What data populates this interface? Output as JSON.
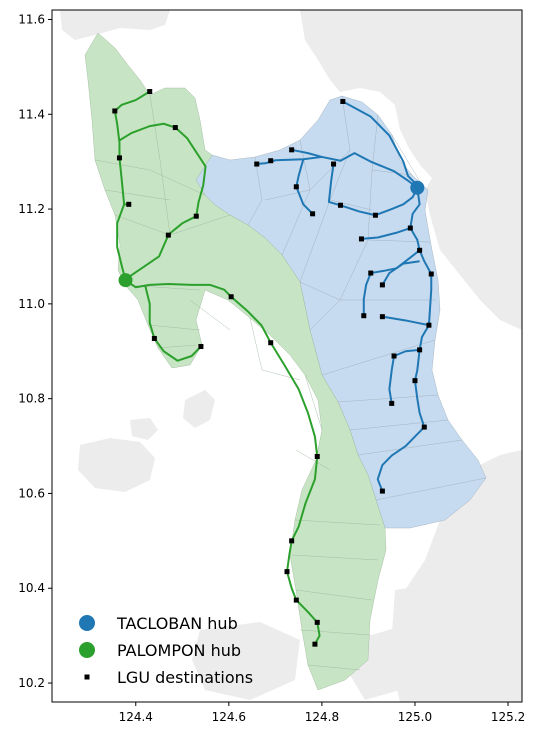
{
  "colors": {
    "tacloban": "#1f77b4",
    "palompon": "#2ca02c",
    "tacloban_region": "#c6dbef",
    "palompon_region": "#c7e5c4",
    "land": "#ececec",
    "destination": "#000000"
  },
  "axes": {
    "xlim": [
      124.22,
      125.23
    ],
    "ylim": [
      10.16,
      11.62
    ],
    "xticks": [
      124.4,
      124.6,
      124.8,
      125.0,
      125.2
    ],
    "yticks": [
      10.2,
      10.4,
      10.6,
      10.8,
      11.0,
      11.2,
      11.4,
      11.6
    ],
    "xtick_labels": [
      "124.4",
      "124.6",
      "124.8",
      "125.0",
      "125.2"
    ],
    "ytick_labels": [
      "10.2",
      "10.4",
      "10.6",
      "10.8",
      "11.0",
      "11.2",
      "11.4",
      "11.6"
    ]
  },
  "legend": {
    "placement": "lower-left",
    "items": [
      {
        "label": "TACLOBAN hub",
        "marker": "circle",
        "color": "#1f77b4"
      },
      {
        "label": "PALOMPON hub",
        "marker": "circle",
        "color": "#2ca02c"
      },
      {
        "label": "LGU destinations",
        "marker": "square",
        "color": "#000000"
      }
    ]
  },
  "hubs": {
    "tacloban": {
      "lon": 125.005,
      "lat": 11.245
    },
    "palompon": {
      "lon": 124.378,
      "lat": 11.05
    }
  },
  "destinations": {
    "tacloban": [
      [
        124.845,
        11.427
      ],
      [
        124.66,
        11.295
      ],
      [
        124.69,
        11.302
      ],
      [
        124.735,
        11.325
      ],
      [
        124.825,
        11.295
      ],
      [
        124.745,
        11.247
      ],
      [
        124.78,
        11.19
      ],
      [
        124.84,
        11.208
      ],
      [
        124.915,
        11.187
      ],
      [
        124.885,
        11.137
      ],
      [
        124.99,
        11.16
      ],
      [
        125.01,
        11.113
      ],
      [
        124.905,
        11.065
      ],
      [
        125.035,
        11.063
      ],
      [
        124.93,
        11.04
      ],
      [
        124.89,
        10.975
      ],
      [
        124.93,
        10.973
      ],
      [
        125.03,
        10.955
      ],
      [
        125.01,
        10.903
      ],
      [
        124.955,
        10.89
      ],
      [
        125.0,
        10.838
      ],
      [
        124.95,
        10.79
      ],
      [
        125.02,
        10.74
      ],
      [
        124.93,
        10.605
      ]
    ],
    "palompon": [
      [
        124.43,
        11.448
      ],
      [
        124.355,
        11.407
      ],
      [
        124.485,
        11.372
      ],
      [
        124.365,
        11.308
      ],
      [
        124.385,
        11.21
      ],
      [
        124.53,
        11.185
      ],
      [
        124.47,
        11.145
      ],
      [
        124.605,
        11.015
      ],
      [
        124.44,
        10.927
      ],
      [
        124.54,
        10.91
      ],
      [
        124.69,
        10.918
      ],
      [
        124.79,
        10.678
      ],
      [
        124.735,
        10.5
      ],
      [
        124.725,
        10.435
      ],
      [
        124.745,
        10.375
      ],
      [
        124.79,
        10.328
      ],
      [
        124.785,
        10.282
      ]
    ]
  },
  "routes": {
    "tacloban": [
      [
        [
          125.005,
          11.245
        ],
        [
          125.0,
          11.255
        ],
        [
          124.985,
          11.27
        ],
        [
          124.975,
          11.3
        ],
        [
          124.945,
          11.355
        ],
        [
          124.905,
          11.395
        ],
        [
          124.845,
          11.427
        ]
      ],
      [
        [
          125.005,
          11.245
        ],
        [
          124.985,
          11.26
        ],
        [
          124.955,
          11.28
        ],
        [
          124.905,
          11.3
        ],
        [
          124.87,
          11.318
        ],
        [
          124.84,
          11.302
        ],
        [
          124.8,
          11.31
        ],
        [
          124.76,
          11.305
        ],
        [
          124.7,
          11.303
        ],
        [
          124.68,
          11.297
        ],
        [
          124.66,
          11.295
        ]
      ],
      [
        [
          124.8,
          11.31
        ],
        [
          124.77,
          11.318
        ],
        [
          124.735,
          11.325
        ]
      ],
      [
        [
          124.825,
          11.295
        ],
        [
          124.82,
          11.26
        ],
        [
          124.815,
          11.215
        ],
        [
          124.84,
          11.208
        ]
      ],
      [
        [
          124.76,
          11.305
        ],
        [
          124.75,
          11.27
        ],
        [
          124.745,
          11.247
        ],
        [
          124.76,
          11.21
        ],
        [
          124.78,
          11.19
        ]
      ],
      [
        [
          124.84,
          11.208
        ],
        [
          124.88,
          11.195
        ],
        [
          124.915,
          11.187
        ],
        [
          124.95,
          11.2
        ],
        [
          124.975,
          11.21
        ],
        [
          124.995,
          11.225
        ],
        [
          125.005,
          11.245
        ]
      ],
      [
        [
          125.005,
          11.245
        ],
        [
          125.01,
          11.21
        ],
        [
          124.995,
          11.19
        ],
        [
          124.99,
          11.16
        ]
      ],
      [
        [
          124.99,
          11.16
        ],
        [
          124.96,
          11.15
        ],
        [
          124.92,
          11.14
        ],
        [
          124.885,
          11.137
        ]
      ],
      [
        [
          124.99,
          11.16
        ],
        [
          125.005,
          11.135
        ],
        [
          125.01,
          11.113
        ],
        [
          125.02,
          11.09
        ],
        [
          125.035,
          11.063
        ],
        [
          125.035,
          11.03
        ],
        [
          125.03,
          10.955
        ],
        [
          125.015,
          10.93
        ],
        [
          125.01,
          10.903
        ],
        [
          125.005,
          10.86
        ],
        [
          125.0,
          10.838
        ],
        [
          125.005,
          10.8
        ],
        [
          125.01,
          10.77
        ],
        [
          125.02,
          10.74
        ]
      ],
      [
        [
          125.01,
          11.113
        ],
        [
          124.98,
          11.09
        ],
        [
          124.96,
          11.075
        ],
        [
          124.935,
          11.07
        ],
        [
          124.905,
          11.065
        ],
        [
          124.895,
          11.04
        ],
        [
          124.89,
          11.01
        ],
        [
          124.89,
          10.975
        ]
      ],
      [
        [
          125.01,
          11.09
        ],
        [
          124.975,
          11.085
        ],
        [
          124.945,
          11.065
        ],
        [
          124.93,
          11.04
        ]
      ],
      [
        [
          125.03,
          10.955
        ],
        [
          124.98,
          10.965
        ],
        [
          124.93,
          10.973
        ]
      ],
      [
        [
          125.01,
          10.903
        ],
        [
          124.98,
          10.9
        ],
        [
          124.955,
          10.89
        ],
        [
          124.95,
          10.86
        ],
        [
          124.945,
          10.82
        ],
        [
          124.95,
          10.79
        ]
      ],
      [
        [
          125.02,
          10.74
        ],
        [
          125.0,
          10.72
        ],
        [
          124.98,
          10.7
        ],
        [
          124.95,
          10.68
        ],
        [
          124.93,
          10.66
        ],
        [
          124.92,
          10.63
        ],
        [
          124.93,
          10.605
        ]
      ]
    ],
    "palompon": [
      [
        [
          124.378,
          11.05
        ],
        [
          124.37,
          11.08
        ],
        [
          124.36,
          11.12
        ],
        [
          124.36,
          11.17
        ],
        [
          124.375,
          11.21
        ],
        [
          124.385,
          11.21
        ]
      ],
      [
        [
          124.375,
          11.21
        ],
        [
          124.37,
          11.26
        ],
        [
          124.365,
          11.308
        ],
        [
          124.365,
          11.34
        ],
        [
          124.36,
          11.38
        ],
        [
          124.355,
          11.407
        ],
        [
          124.37,
          11.42
        ],
        [
          124.4,
          11.43
        ],
        [
          124.43,
          11.448
        ]
      ],
      [
        [
          124.365,
          11.345
        ],
        [
          124.39,
          11.36
        ],
        [
          124.43,
          11.375
        ],
        [
          124.46,
          11.38
        ],
        [
          124.485,
          11.372
        ],
        [
          124.51,
          11.35
        ],
        [
          124.53,
          11.32
        ],
        [
          124.55,
          11.29
        ],
        [
          124.545,
          11.25
        ],
        [
          124.535,
          11.215
        ],
        [
          124.53,
          11.185
        ]
      ],
      [
        [
          124.53,
          11.185
        ],
        [
          124.5,
          11.17
        ],
        [
          124.475,
          11.15
        ],
        [
          124.47,
          11.145
        ],
        [
          124.45,
          11.1
        ],
        [
          124.42,
          11.08
        ],
        [
          124.39,
          11.06
        ],
        [
          124.378,
          11.05
        ]
      ],
      [
        [
          124.378,
          11.05
        ],
        [
          124.4,
          11.035
        ],
        [
          124.43,
          11.04
        ],
        [
          124.47,
          11.042
        ],
        [
          124.52,
          11.04
        ],
        [
          124.56,
          11.04
        ],
        [
          124.59,
          11.03
        ],
        [
          124.605,
          11.015
        ],
        [
          124.64,
          10.985
        ],
        [
          124.67,
          10.955
        ],
        [
          124.69,
          10.918
        ],
        [
          124.72,
          10.87
        ],
        [
          124.75,
          10.82
        ],
        [
          124.77,
          10.77
        ],
        [
          124.785,
          10.72
        ],
        [
          124.79,
          10.678
        ],
        [
          124.785,
          10.63
        ],
        [
          124.765,
          10.58
        ],
        [
          124.75,
          10.53
        ],
        [
          124.735,
          10.5
        ],
        [
          124.73,
          10.47
        ],
        [
          124.725,
          10.435
        ],
        [
          124.735,
          10.4
        ],
        [
          124.745,
          10.375
        ],
        [
          124.77,
          10.35
        ],
        [
          124.79,
          10.328
        ],
        [
          124.795,
          10.3
        ],
        [
          124.785,
          10.282
        ]
      ],
      [
        [
          124.42,
          11.04
        ],
        [
          124.43,
          11.0
        ],
        [
          124.43,
          10.96
        ],
        [
          124.44,
          10.927
        ],
        [
          124.46,
          10.9
        ],
        [
          124.49,
          10.88
        ],
        [
          124.52,
          10.89
        ],
        [
          124.54,
          10.91
        ]
      ]
    ]
  }
}
